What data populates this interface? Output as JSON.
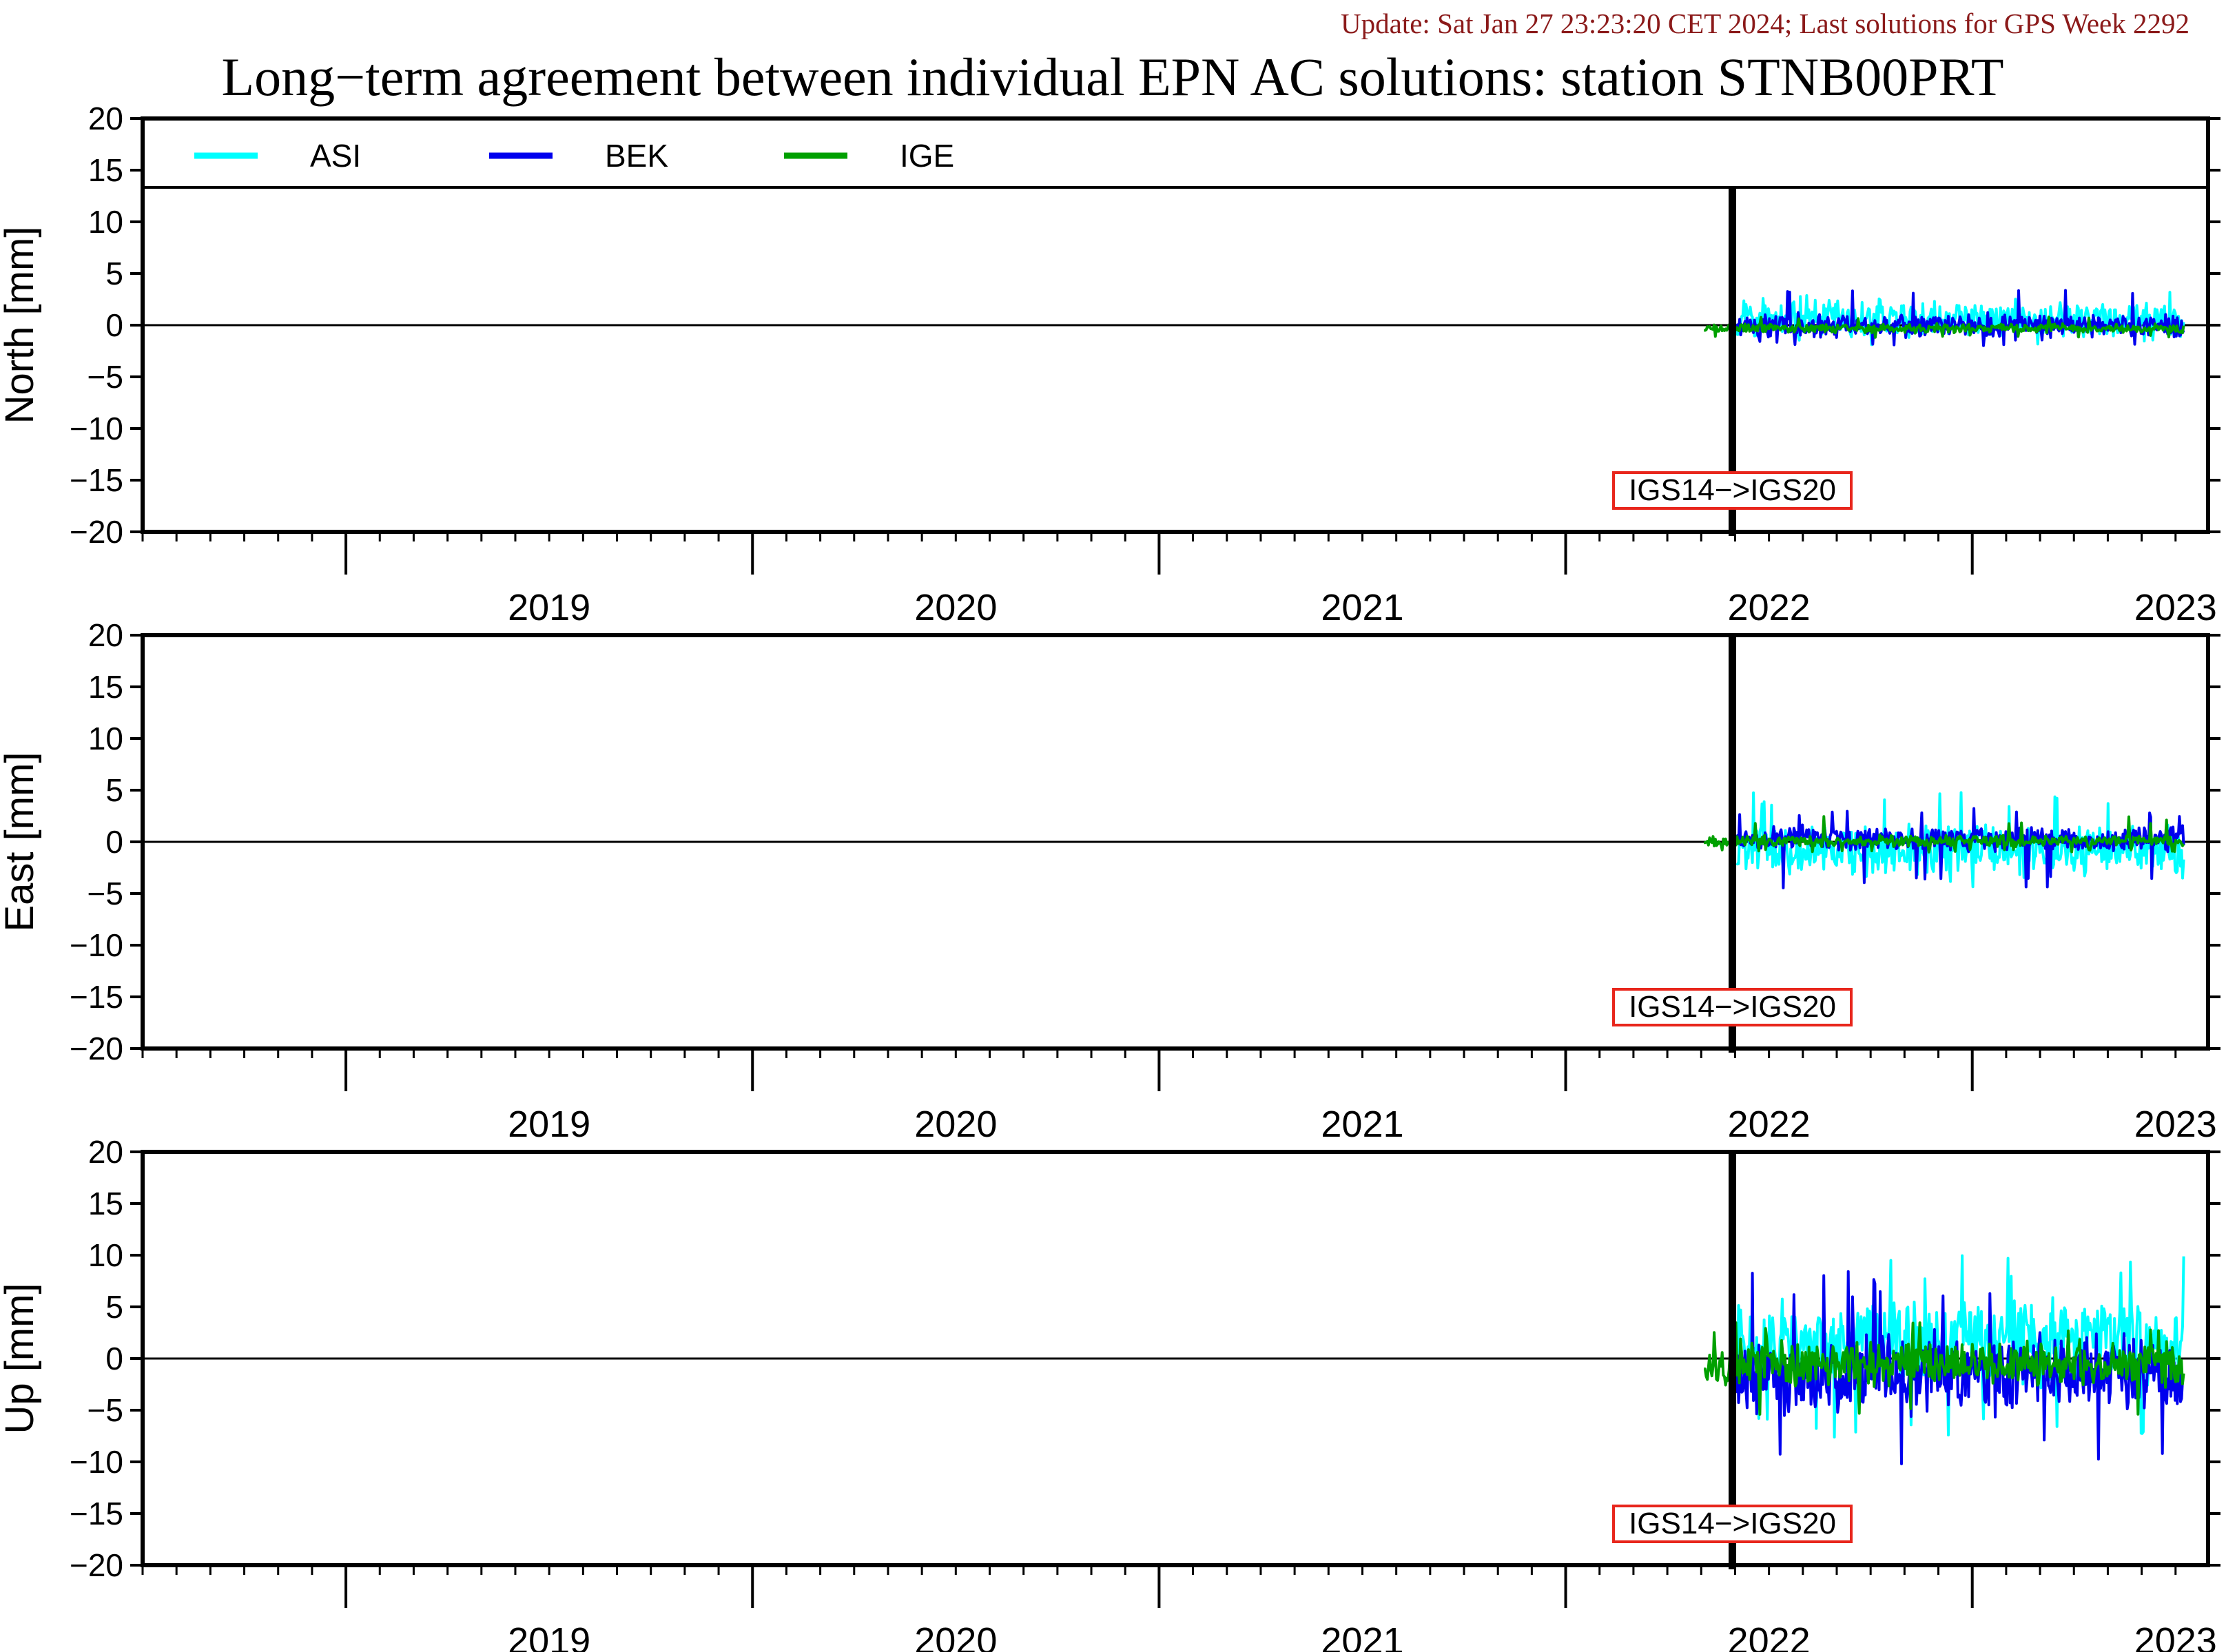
{
  "header": {
    "update_text": "Update: Sat Jan 27 23:23:20 CET 2024; Last solutions for GPS Week 2292",
    "title": "Long−term agreement between individual EPN AC solutions: station STNB00PRT"
  },
  "colors": {
    "update_text": "#8b1a1a",
    "ASI": "#00ffff",
    "BEK": "#0000ee",
    "IGE": "#00a000",
    "event_box": "#e8261c",
    "frame": "#000000"
  },
  "legend": {
    "items": [
      {
        "name": "ASI",
        "color": "#00ffff"
      },
      {
        "name": "BEK",
        "color": "#0000ee"
      },
      {
        "name": "IGE",
        "color": "#00a000"
      }
    ],
    "placement": "top-left"
  },
  "chart_data": [
    {
      "type": "line",
      "panel": "north",
      "ylabel": "North [mm]",
      "ylim": [
        -20,
        20
      ],
      "yticks": [
        20,
        15,
        10,
        5,
        0,
        -5,
        -10,
        -15,
        -20
      ],
      "xlim": [
        2018.5,
        2023.58
      ],
      "year_labels": [
        "2019",
        "2020",
        "2021",
        "2022",
        "2023"
      ],
      "event": {
        "x": 2022.41,
        "label": "IGS14−>IGS20"
      },
      "series": [
        {
          "name": "ASI",
          "x_start": 2022.42,
          "x_end": 2023.52,
          "mean": 0.5,
          "amplitude": 2.0,
          "min": -2.0,
          "max": 3.2,
          "seed": 11
        },
        {
          "name": "BEK",
          "x_start": 2022.42,
          "x_end": 2023.52,
          "mean": 0.0,
          "amplitude": 1.3,
          "min": -2.0,
          "max": 3.6,
          "seed": 23
        },
        {
          "name": "IGE",
          "x_start": 2022.34,
          "x_end": 2023.52,
          "mean": -0.3,
          "amplitude": 0.5,
          "min": -1.2,
          "max": 0.8,
          "seed": 37
        }
      ]
    },
    {
      "type": "line",
      "panel": "east",
      "ylabel": "East [mm]",
      "ylim": [
        -20,
        20
      ],
      "yticks": [
        20,
        15,
        10,
        5,
        0,
        -5,
        -10,
        -15,
        -20
      ],
      "xlim": [
        2018.5,
        2023.58
      ],
      "year_labels": [
        "2019",
        "2020",
        "2021",
        "2022",
        "2023"
      ],
      "event": {
        "x": 2022.41,
        "label": "IGS14−>IGS20"
      },
      "series": [
        {
          "name": "ASI",
          "x_start": 2022.42,
          "x_end": 2023.52,
          "mean": -0.8,
          "amplitude": 2.6,
          "min": -4.5,
          "max": 4.8,
          "seed": 41
        },
        {
          "name": "BEK",
          "x_start": 2022.42,
          "x_end": 2023.52,
          "mean": 0.3,
          "amplitude": 1.4,
          "min": -4.7,
          "max": 3.3,
          "seed": 53
        },
        {
          "name": "IGE",
          "x_start": 2022.34,
          "x_end": 2023.52,
          "mean": 0.1,
          "amplitude": 0.6,
          "min": -1.0,
          "max": 2.5,
          "seed": 67
        }
      ]
    },
    {
      "type": "line",
      "panel": "up",
      "ylabel": "Up [mm]",
      "ylim": [
        -20,
        20
      ],
      "yticks": [
        20,
        15,
        10,
        5,
        0,
        -5,
        -10,
        -15,
        -20
      ],
      "xlim": [
        2018.5,
        2023.58
      ],
      "year_labels": [
        "2019",
        "2020",
        "2021",
        "2022",
        "2023"
      ],
      "event": {
        "x": 2022.41,
        "label": "IGS14−>IGS20"
      },
      "series": [
        {
          "name": "ASI",
          "x_start": 2022.42,
          "x_end": 2023.52,
          "mean": 1.5,
          "amplitude": 5.0,
          "min": -8.0,
          "max": 11.0,
          "seed": 71
        },
        {
          "name": "BEK",
          "x_start": 2022.42,
          "x_end": 2023.52,
          "mean": -1.5,
          "amplitude": 4.5,
          "min": -10.5,
          "max": 8.5,
          "seed": 83
        },
        {
          "name": "IGE",
          "x_start": 2022.34,
          "x_end": 2023.52,
          "mean": -0.5,
          "amplitude": 2.5,
          "min": -6.5,
          "max": 3.5,
          "seed": 97
        }
      ]
    }
  ]
}
